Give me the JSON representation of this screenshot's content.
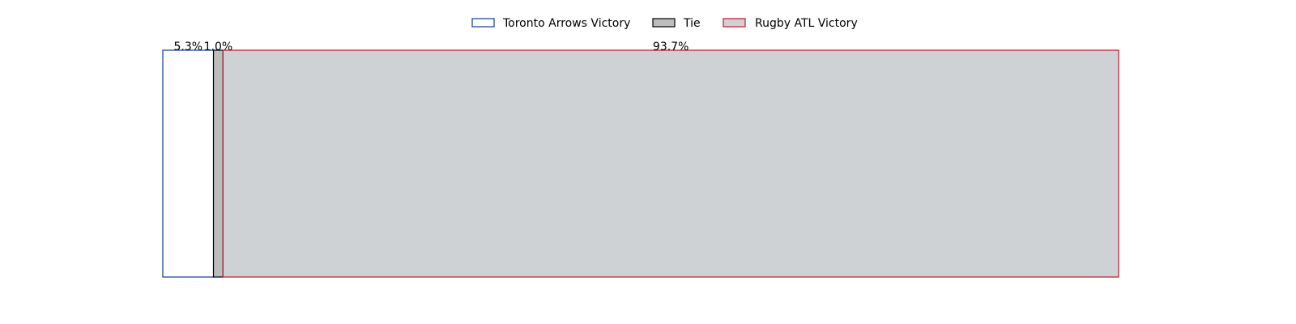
{
  "chart_data": {
    "type": "bar",
    "orientation": "horizontal",
    "stacked": true,
    "title": "",
    "xlabel": "",
    "ylabel": "",
    "xlim": [
      0,
      100
    ],
    "grid": false,
    "legend_position": "top-center",
    "series": [
      {
        "name": "Toronto Arrows Victory",
        "value": 5.3,
        "label": "5.3%",
        "fill": "#ffffff",
        "stroke": "#0b3d91"
      },
      {
        "name": "Tie",
        "value": 1.0,
        "label": "1.0%",
        "fill": "#bdbdbd",
        "stroke": "#000000"
      },
      {
        "name": "Rugby ATL Victory",
        "value": 93.7,
        "label": "93.7%",
        "fill": "#cfd2d5",
        "stroke": "#c8102e"
      }
    ]
  }
}
